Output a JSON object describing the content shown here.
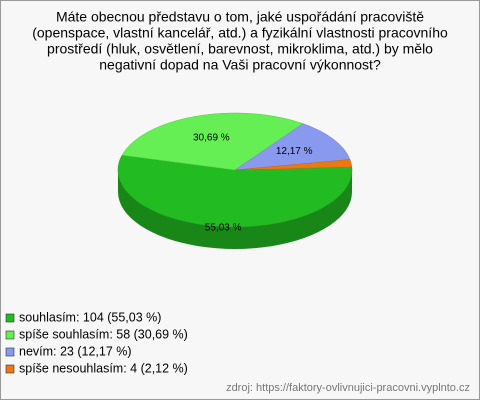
{
  "chart_data": {
    "type": "pie",
    "title": [
      "Máte obecnou představu o tom, jaké uspořádání pracoviště",
      "(openspace, vlastní kancelář, atd.) a fyzikální vlastnosti pracovního",
      "prostředí (hluk, osvětlení, barevnost, mikroklima, atd.) by mělo",
      "negativní dopad na Vaši pracovní výkonnost?"
    ],
    "categories": [
      "souhlasím",
      "spíše souhlasím",
      "nevím",
      "spíše nesouhlasím"
    ],
    "values": [
      55.03,
      30.69,
      12.17,
      2.12
    ],
    "value_labels": [
      "55,03 %",
      "30,69 %",
      "12,17 %",
      null
    ],
    "legend_labels": [
      "souhlasím: 104 (55,03 %)",
      "spíše souhlasím: 58 (30,69 %)",
      "nevím: 23 (12,17 %)",
      "spíše nesouhlasím: 4 (2,12 %)"
    ],
    "colors": [
      "#22bb22",
      "#66ee55",
      "#8899ee",
      "#ee7711"
    ],
    "legend": "bottom-left",
    "source": "zdroj: https://faktory-ovlivnujici-pracovni.vyplnto.cz"
  }
}
